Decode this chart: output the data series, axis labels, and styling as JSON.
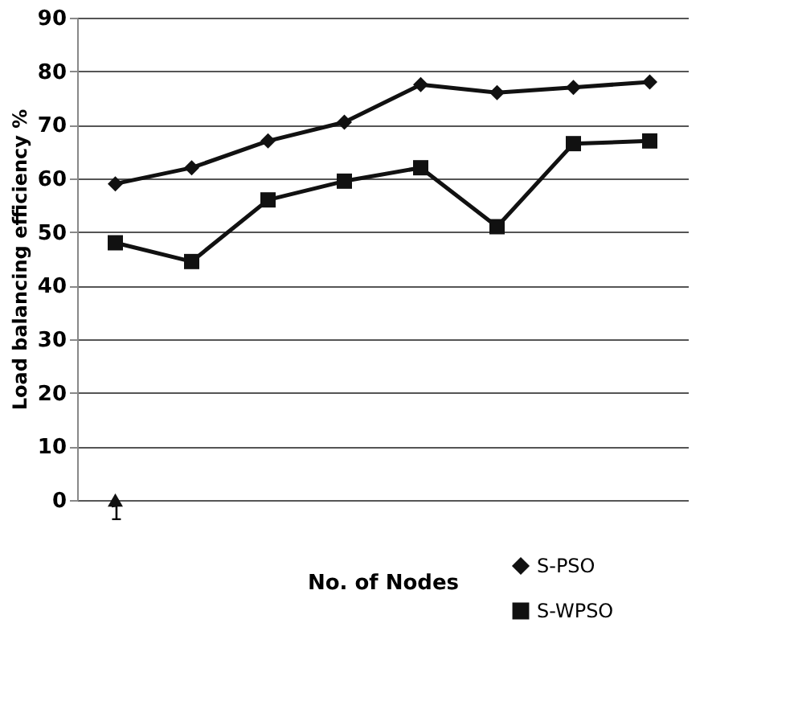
{
  "chart_data": {
    "type": "line",
    "xlabel": "No. of Nodes",
    "ylabel": "Load balancing efficiency %",
    "categories": [
      "1",
      null,
      null,
      null,
      null,
      null,
      null,
      null
    ],
    "ylim": [
      0,
      90
    ],
    "yticks": [
      0,
      10,
      20,
      30,
      40,
      50,
      60,
      70,
      80,
      90
    ],
    "grid": "y",
    "legend": "bottom right",
    "line_style": "solid",
    "series": [
      {
        "name": "S-PSO",
        "color": "#111111",
        "marker": "diamond",
        "values": [
          59,
          62,
          67,
          70.5,
          77.5,
          76,
          77,
          78
        ]
      },
      {
        "name": "S-WPSO",
        "color": "#111111",
        "marker": "square",
        "values": [
          48,
          44.5,
          56,
          59.5,
          62,
          51,
          66.5,
          67
        ]
      },
      {
        "type": "scatter",
        "color": "#111111",
        "marker": "triangle",
        "values": [
          0,
          null,
          null,
          null,
          null,
          null,
          null,
          null
        ]
      }
    ]
  }
}
